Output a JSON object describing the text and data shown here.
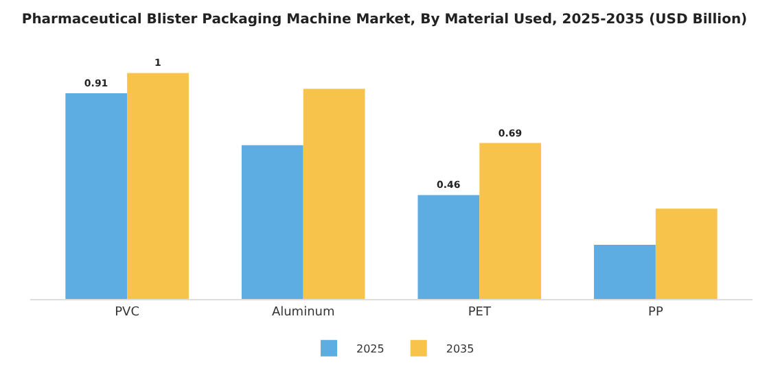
{
  "chart_data": {
    "type": "bar",
    "title": "Pharmaceutical Blister Packaging Machine Market, By Material Used, 2025-2035 (USD Billion)",
    "categories": [
      "PVC",
      "Aluminum",
      "PET",
      "PP"
    ],
    "series": [
      {
        "name": "2025",
        "color": "#5dade2",
        "values": [
          0.91,
          0.68,
          0.46,
          0.24
        ],
        "value_labels": [
          "0.91",
          null,
          "0.46",
          null
        ]
      },
      {
        "name": "2035",
        "color": "#f8c34b",
        "values": [
          1,
          0.93,
          0.69,
          0.4
        ],
        "value_labels": [
          "1",
          null,
          "0.69",
          null
        ]
      }
    ],
    "legend": "bottom",
    "grid": false
  }
}
